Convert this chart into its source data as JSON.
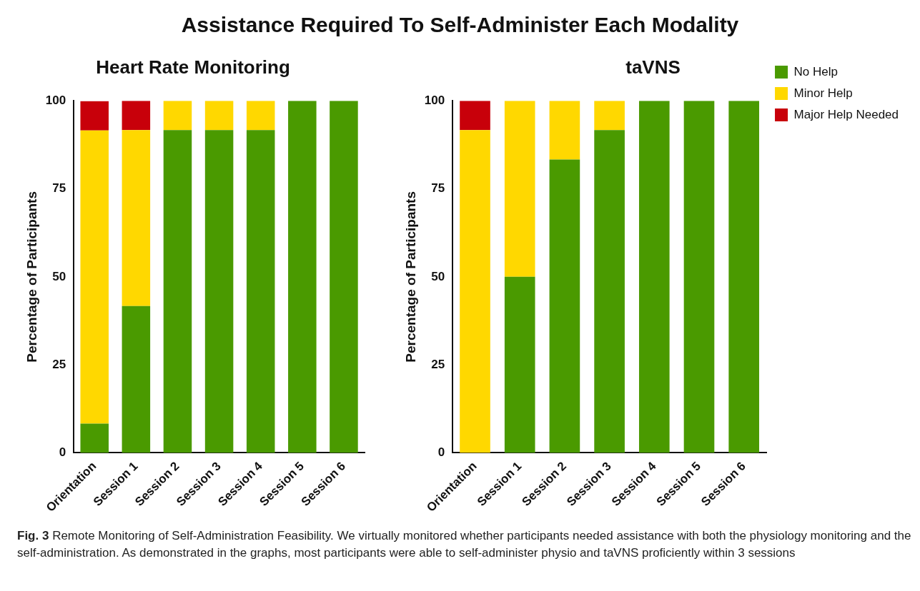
{
  "chart_data": [
    {
      "type": "bar",
      "title": "Heart Rate Monitoring",
      "ylabel": "Percentage of Participants",
      "categories": [
        "Orientation",
        "Session 1",
        "Session 2",
        "Session 3",
        "Session 4",
        "Session 5",
        "Session 6"
      ],
      "stacked": true,
      "ylim": [
        0,
        100
      ],
      "yticks": [
        0,
        25,
        50,
        75,
        100
      ],
      "grid": false,
      "legend": false,
      "series": [
        {
          "color": "#4a9a00",
          "values": [
            8.3,
            41.7,
            91.7,
            91.7,
            91.7,
            100,
            100
          ]
        },
        {
          "color": "#ffd800",
          "values": [
            83.3,
            50,
            8.3,
            8.3,
            8.3,
            0,
            0
          ]
        },
        {
          "color": "#c8000a",
          "values": [
            8.3,
            8.3,
            0,
            0,
            0,
            0,
            0
          ]
        }
      ],
      "annotations": [
        "Assistance Required To Self-Administer Each Modality",
        "Fig. 3",
        "Remote Monitoring of Self-Administration Feasibility. We virtually monitored whether participants needed assistance with both the physiology monitoring and the self-administration. As demonstrated in the graphs, most participants were able to self-administer physio and taVNS proficiently within 3 sessions"
      ]
    },
    {
      "type": "bar",
      "title": "taVNS",
      "ylabel": "Percentage of Participants",
      "categories": [
        "Orientation",
        "Session 1",
        "Session 2",
        "Session 3",
        "Session 4",
        "Session 5",
        "Session 6"
      ],
      "stacked": true,
      "ylim": [
        0,
        100
      ],
      "yticks": [
        0,
        25,
        50,
        75,
        100
      ],
      "grid": false,
      "legend": "right",
      "series": [
        {
          "name": "No Help",
          "color": "#4a9a00",
          "values": [
            0,
            50,
            83.3,
            91.7,
            100,
            100,
            100
          ]
        },
        {
          "name": "Minor Help",
          "color": "#ffd800",
          "values": [
            91.7,
            50,
            16.7,
            8.3,
            0,
            0,
            0
          ]
        },
        {
          "name": "Major Help Needed",
          "color": "#c8000a",
          "values": [
            8.3,
            0,
            0,
            0,
            0,
            0,
            0
          ]
        }
      ]
    }
  ]
}
